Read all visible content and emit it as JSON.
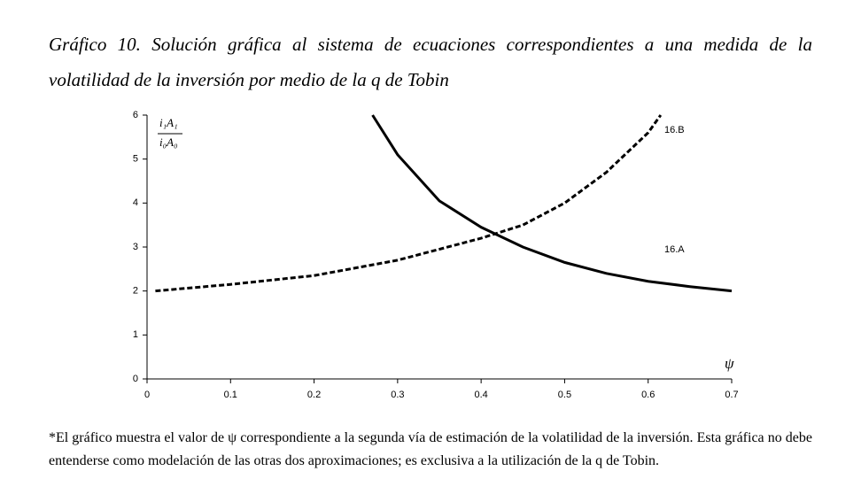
{
  "title": "Gráfico 10. Solución gráfica al sistema de ecuaciones correspondientes a una medida de la volatilidad de la inversión por medio de la q de Tobin",
  "chart_data": {
    "type": "line",
    "y_label_numerator": "i₁A₁",
    "y_label_denominator": "i₀A₀",
    "x_label": "ψ",
    "series": [
      {
        "name": "16.A",
        "color": "#000000",
        "dash": false,
        "x": [
          0.27,
          0.3,
          0.35,
          0.4,
          0.45,
          0.5,
          0.55,
          0.6,
          0.65,
          0.7
        ],
        "values": [
          6.0,
          5.1,
          4.05,
          3.45,
          3.0,
          2.65,
          2.4,
          2.22,
          2.1,
          2.0
        ]
      },
      {
        "name": "16.B",
        "color": "#000000",
        "dash": true,
        "x": [
          0.01,
          0.1,
          0.2,
          0.3,
          0.4,
          0.45,
          0.5,
          0.55,
          0.6,
          0.615
        ],
        "values": [
          2.0,
          2.15,
          2.35,
          2.7,
          3.2,
          3.5,
          4.0,
          4.7,
          5.6,
          6.0
        ]
      }
    ],
    "xlim": [
      0,
      0.7
    ],
    "xticks": [
      0,
      0.1,
      0.2,
      0.3,
      0.4,
      0.5,
      0.6,
      0.7
    ],
    "ylim": [
      0,
      6
    ],
    "yticks": [
      0,
      1,
      2,
      3,
      4,
      5,
      6
    ],
    "grid": false
  },
  "footnote": "*El gráfico muestra el valor de ψ correspondiente a la segunda vía de estimación de la volatilidad de la inversión. Esta gráfica no debe entenderse como modelación de las otras dos aproximaciones; es exclusiva a la utilización de la q de Tobin."
}
